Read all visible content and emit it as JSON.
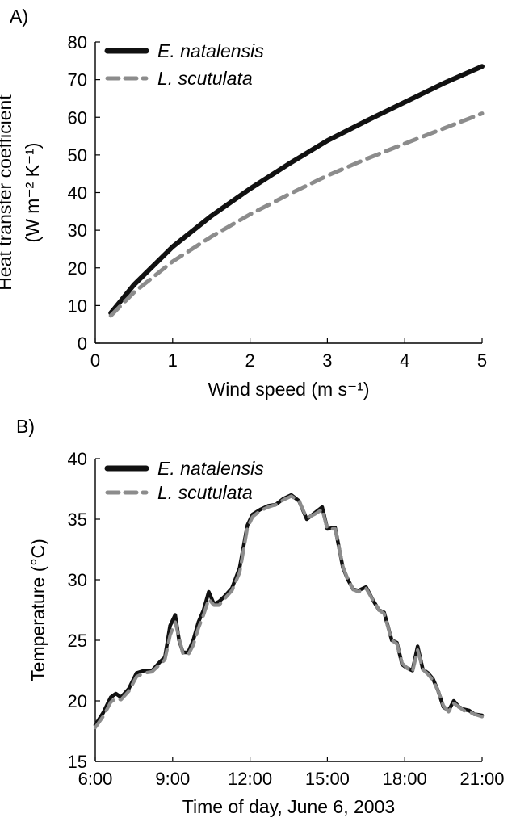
{
  "colors": {
    "series_a": "#111111",
    "series_b": "#8c8c8c",
    "axis": "#000000"
  },
  "chart_data": [
    {
      "panel": "A)",
      "type": "line",
      "xlabel": "Wind speed (m s⁻¹)",
      "ylabel_lines": [
        "Heat transfer coefficient",
        "(W m⁻² K⁻¹)"
      ],
      "xlim": [
        0,
        5
      ],
      "ylim": [
        0,
        80
      ],
      "xticks": [
        "0",
        "1",
        "2",
        "3",
        "4",
        "5"
      ],
      "yticks": [
        "0",
        "10",
        "20",
        "30",
        "40",
        "50",
        "60",
        "70",
        "80"
      ],
      "grid": false,
      "legend_position": "top-left",
      "x": [
        0.2,
        0.5,
        1,
        1.5,
        2,
        2.5,
        3,
        3.5,
        4,
        4.5,
        5
      ],
      "series": [
        {
          "name": "E. natalensis",
          "style": "solid",
          "values": [
            8.0,
            15.5,
            25.6,
            33.8,
            41.0,
            47.6,
            53.8,
            59.0,
            64.0,
            69.0,
            73.5
          ]
        },
        {
          "name": "L. scutulata",
          "style": "dashed",
          "values": [
            7.3,
            13.5,
            21.7,
            28.3,
            34.2,
            39.5,
            44.5,
            48.9,
            53.0,
            57.0,
            61.0
          ]
        }
      ]
    },
    {
      "panel": "B)",
      "type": "line",
      "xlabel": "Time of day,  June 6, 2003",
      "ylabel": "Temperature (°C)",
      "xlim": [
        6,
        21
      ],
      "ylim": [
        15,
        40
      ],
      "xticks": [
        "6:00",
        "9:00",
        "12:00",
        "15:00",
        "18:00",
        "21:00"
      ],
      "yticks": [
        "15",
        "20",
        "25",
        "30",
        "35",
        "40"
      ],
      "grid": false,
      "legend_position": "top-left",
      "x": [
        6.0,
        6.3,
        6.6,
        6.8,
        7.0,
        7.3,
        7.6,
        7.9,
        8.2,
        8.5,
        8.7,
        8.9,
        9.1,
        9.25,
        9.4,
        9.6,
        9.8,
        10.0,
        10.2,
        10.4,
        10.6,
        10.8,
        11.0,
        11.3,
        11.6,
        11.9,
        12.1,
        12.4,
        12.7,
        13.0,
        13.3,
        13.6,
        13.9,
        14.2,
        14.5,
        14.8,
        15.0,
        15.3,
        15.6,
        15.8,
        16.0,
        16.2,
        16.5,
        16.8,
        17.0,
        17.2,
        17.5,
        17.7,
        17.9,
        18.1,
        18.3,
        18.5,
        18.7,
        18.9,
        19.1,
        19.3,
        19.5,
        19.7,
        19.9,
        20.1,
        20.3,
        20.5,
        20.7,
        21.0
      ],
      "series": [
        {
          "name": "E. natalensis",
          "style": "solid",
          "values": [
            18.0,
            19.0,
            20.3,
            20.6,
            20.3,
            21.0,
            22.3,
            22.5,
            22.5,
            23.2,
            23.6,
            26.2,
            27.1,
            25.0,
            24.0,
            24.0,
            25.0,
            26.5,
            27.5,
            29.0,
            28.0,
            28.2,
            28.6,
            29.3,
            31.0,
            34.5,
            35.4,
            35.8,
            36.1,
            36.2,
            36.7,
            37.0,
            36.5,
            35.0,
            35.5,
            36.0,
            34.2,
            34.3,
            31.0,
            30.0,
            29.2,
            29.1,
            29.4,
            28.2,
            27.5,
            27.3,
            25.0,
            24.8,
            23.0,
            22.7,
            22.5,
            24.5,
            22.6,
            22.3,
            21.8,
            20.8,
            19.5,
            19.2,
            20.0,
            19.5,
            19.3,
            19.2,
            18.9,
            18.8
          ]
        },
        {
          "name": "L. scutulata",
          "style": "dashed",
          "values": [
            17.8,
            18.7,
            19.9,
            20.2,
            20.1,
            20.8,
            22.0,
            22.3,
            22.4,
            23.0,
            23.4,
            25.4,
            26.5,
            25.2,
            23.9,
            23.8,
            24.6,
            26.0,
            27.1,
            28.4,
            27.9,
            27.9,
            28.4,
            29.1,
            30.6,
            34.3,
            35.2,
            35.7,
            36.0,
            36.2,
            36.6,
            36.9,
            36.5,
            35.1,
            35.4,
            35.8,
            34.2,
            34.2,
            31.1,
            30.0,
            29.2,
            29.0,
            29.3,
            28.2,
            27.5,
            27.2,
            25.0,
            24.7,
            23.1,
            22.7,
            22.4,
            24.2,
            22.6,
            22.2,
            21.7,
            20.8,
            19.6,
            19.1,
            19.8,
            19.5,
            19.2,
            19.1,
            18.9,
            18.7
          ]
        }
      ]
    }
  ]
}
